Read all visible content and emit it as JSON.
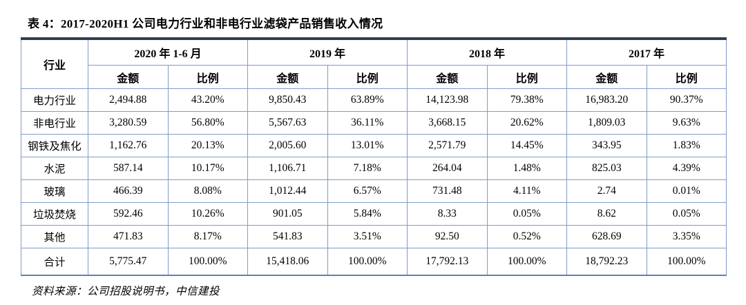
{
  "table": {
    "title": "表 4：2017-2020H1 公司电力行业和非电行业滤袋产品销售收入情况",
    "industry_header": "行业",
    "period_headers": [
      "2020 年 1-6 月",
      "2019 年",
      "2018 年",
      "2017 年"
    ],
    "amount_label": "金额",
    "ratio_label": "比例",
    "rows": [
      {
        "industry": "电力行业",
        "cells": [
          "2,494.88",
          "43.20%",
          "9,850.43",
          "63.89%",
          "14,123.98",
          "79.38%",
          "16,983.20",
          "90.37%"
        ]
      },
      {
        "industry": "非电行业",
        "cells": [
          "3,280.59",
          "56.80%",
          "5,567.63",
          "36.11%",
          "3,668.15",
          "20.62%",
          "1,809.03",
          "9.63%"
        ]
      },
      {
        "industry": "钢铁及焦化",
        "cells": [
          "1,162.76",
          "20.13%",
          "2,005.60",
          "13.01%",
          "2,571.79",
          "14.45%",
          "343.95",
          "1.83%"
        ]
      },
      {
        "industry": "水泥",
        "cells": [
          "587.14",
          "10.17%",
          "1,106.71",
          "7.18%",
          "264.04",
          "1.48%",
          "825.03",
          "4.39%"
        ]
      },
      {
        "industry": "玻璃",
        "cells": [
          "466.39",
          "8.08%",
          "1,012.44",
          "6.57%",
          "731.48",
          "4.11%",
          "2.74",
          "0.01%"
        ]
      },
      {
        "industry": "垃圾焚烧",
        "cells": [
          "592.46",
          "10.26%",
          "901.05",
          "5.84%",
          "8.33",
          "0.05%",
          "8.62",
          "0.05%"
        ]
      },
      {
        "industry": "其他",
        "cells": [
          "471.83",
          "8.17%",
          "541.83",
          "3.51%",
          "92.50",
          "0.52%",
          "628.69",
          "3.35%"
        ]
      },
      {
        "industry": "合计",
        "cells": [
          "5,775.47",
          "100.00%",
          "15,418.06",
          "100.00%",
          "17,792.13",
          "100.00%",
          "18,792.23",
          "100.00%"
        ]
      }
    ],
    "source": "资料来源：公司招股说明书，中信建投"
  },
  "colors": {
    "top_rule": "#323e50",
    "cell_border": "#7e9bc9",
    "bottom_rule": "#5d81b6",
    "text": "#000000",
    "background": "#ffffff"
  }
}
